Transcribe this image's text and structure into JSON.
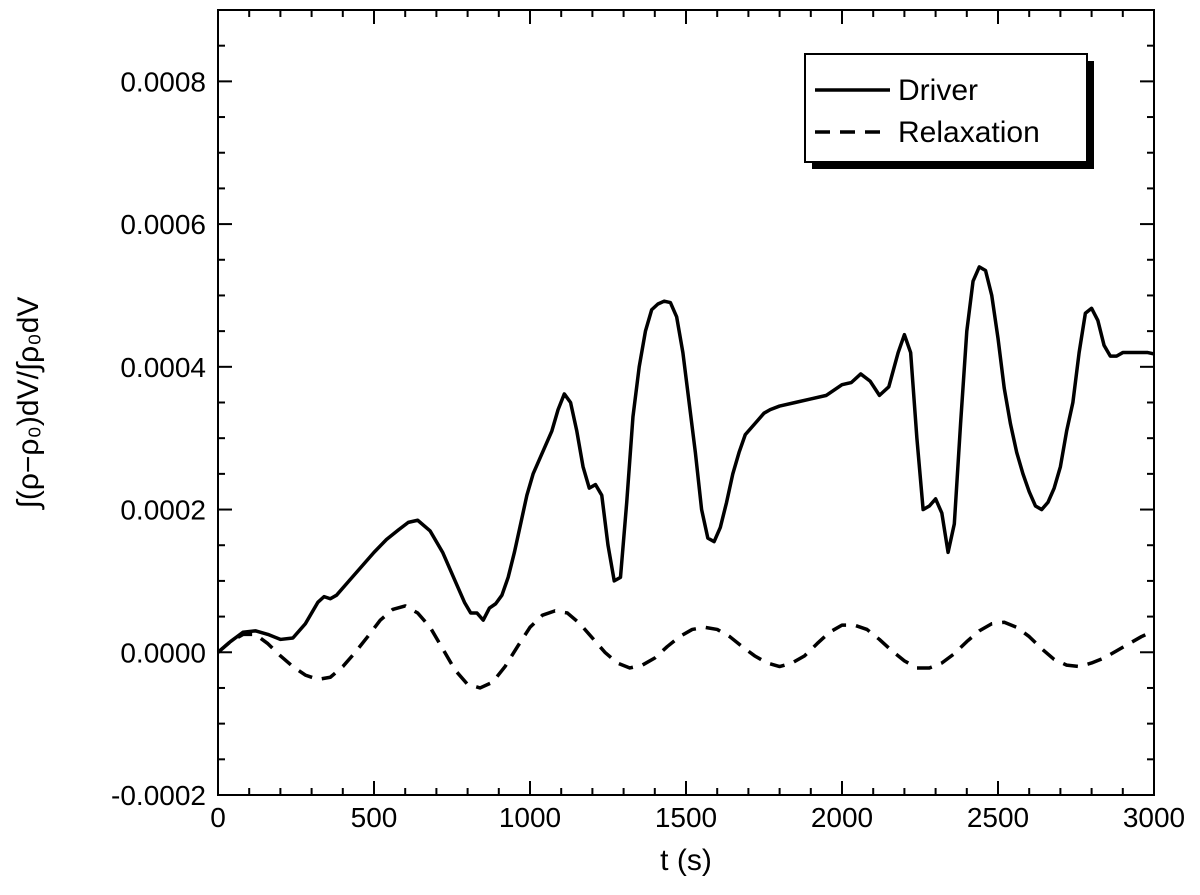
{
  "chart_data": {
    "type": "line",
    "title": "",
    "xlabel": "t (s)",
    "ylabel": "∫(ρ−ρ₀)dV/∫ρ₀dV",
    "xlim": [
      0,
      3000
    ],
    "ylim": [
      -0.0002,
      0.0009
    ],
    "x_ticks": [
      0,
      500,
      1000,
      1500,
      2000,
      2500,
      3000
    ],
    "x_tick_labels": [
      "0",
      "500",
      "1000",
      "1500",
      "2000",
      "2500",
      "3000"
    ],
    "y_ticks": [
      -0.0002,
      0,
      0.0002,
      0.0004,
      0.0006,
      0.0008
    ],
    "y_tick_labels": [
      "-0.0002",
      "0.0000",
      "0.0002",
      "0.0004",
      "0.0006",
      "0.0008"
    ],
    "grid": false,
    "legend": {
      "position": "top-right",
      "entries": [
        "Driver",
        "Relaxation"
      ]
    },
    "series": [
      {
        "name": "Driver",
        "style": "solid",
        "x": [
          0,
          40,
          80,
          120,
          160,
          200,
          240,
          280,
          320,
          340,
          360,
          380,
          420,
          460,
          500,
          540,
          580,
          610,
          640,
          680,
          720,
          760,
          790,
          810,
          830,
          850,
          870,
          890,
          910,
          930,
          950,
          970,
          990,
          1010,
          1030,
          1050,
          1070,
          1090,
          1110,
          1130,
          1150,
          1170,
          1190,
          1210,
          1230,
          1250,
          1270,
          1290,
          1310,
          1330,
          1350,
          1370,
          1390,
          1410,
          1430,
          1450,
          1470,
          1490,
          1510,
          1530,
          1550,
          1570,
          1590,
          1610,
          1630,
          1650,
          1670,
          1690,
          1710,
          1730,
          1750,
          1770,
          1800,
          1850,
          1900,
          1950,
          2000,
          2030,
          2060,
          2090,
          2120,
          2150,
          2180,
          2200,
          2220,
          2240,
          2260,
          2280,
          2300,
          2320,
          2340,
          2360,
          2380,
          2400,
          2420,
          2440,
          2460,
          2480,
          2500,
          2520,
          2540,
          2560,
          2580,
          2600,
          2620,
          2640,
          2660,
          2680,
          2700,
          2720,
          2740,
          2760,
          2780,
          2800,
          2820,
          2840,
          2860,
          2880,
          2900,
          2920,
          2940,
          2960,
          2980,
          3000
        ],
        "values": [
          0.0,
          1.5e-05,
          2.8e-05,
          3e-05,
          2.5e-05,
          1.8e-05,
          2e-05,
          4e-05,
          7e-05,
          7.8e-05,
          7.5e-05,
          8e-05,
          0.0001,
          0.00012,
          0.00014,
          0.000158,
          0.000172,
          0.000182,
          0.000185,
          0.00017,
          0.00014,
          0.0001,
          7e-05,
          5.5e-05,
          5.5e-05,
          4.5e-05,
          6.2e-05,
          6.8e-05,
          8e-05,
          0.000105,
          0.00014,
          0.00018,
          0.00022,
          0.00025,
          0.00027,
          0.00029,
          0.00031,
          0.00034,
          0.000362,
          0.00035,
          0.00031,
          0.00026,
          0.00023,
          0.000235,
          0.00022,
          0.00015,
          0.0001,
          0.000105,
          0.00021,
          0.00033,
          0.0004,
          0.00045,
          0.00048,
          0.000488,
          0.000492,
          0.00049,
          0.00047,
          0.00042,
          0.00035,
          0.00028,
          0.0002,
          0.00016,
          0.000155,
          0.000175,
          0.00021,
          0.00025,
          0.00028,
          0.000305,
          0.000315,
          0.000325,
          0.000335,
          0.00034,
          0.000345,
          0.00035,
          0.000355,
          0.00036,
          0.000375,
          0.000378,
          0.00039,
          0.00038,
          0.00036,
          0.000372,
          0.00042,
          0.000445,
          0.00042,
          0.0003,
          0.0002,
          0.000205,
          0.000215,
          0.000195,
          0.00014,
          0.00018,
          0.00032,
          0.00045,
          0.00052,
          0.00054,
          0.000535,
          0.0005,
          0.00044,
          0.00037,
          0.00032,
          0.00028,
          0.00025,
          0.000225,
          0.000205,
          0.0002,
          0.00021,
          0.00023,
          0.00026,
          0.00031,
          0.00035,
          0.00042,
          0.000475,
          0.000482,
          0.000465,
          0.00043,
          0.000415,
          0.000415,
          0.00042,
          0.00042,
          0.00042,
          0.00042,
          0.00042,
          0.000418
        ]
      },
      {
        "name": "Relaxation",
        "style": "dashed",
        "x": [
          0,
          40,
          80,
          120,
          160,
          200,
          240,
          280,
          320,
          360,
          400,
          440,
          480,
          520,
          560,
          600,
          640,
          680,
          720,
          760,
          800,
          840,
          880,
          920,
          960,
          1000,
          1040,
          1080,
          1120,
          1160,
          1200,
          1240,
          1280,
          1320,
          1360,
          1400,
          1440,
          1480,
          1520,
          1560,
          1600,
          1640,
          1680,
          1720,
          1760,
          1800,
          1840,
          1880,
          1920,
          1960,
          2000,
          2040,
          2080,
          2120,
          2160,
          2200,
          2240,
          2280,
          2320,
          2360,
          2400,
          2440,
          2480,
          2520,
          2560,
          2600,
          2640,
          2680,
          2720,
          2760,
          2800,
          2840,
          2880,
          2920,
          2960,
          3000
        ],
        "values": [
          0.0,
          1.5e-05,
          2.5e-05,
          2.5e-05,
          1.2e-05,
          -5e-06,
          -2e-05,
          -3.2e-05,
          -3.8e-05,
          -3.5e-05,
          -2e-05,
          0.0,
          2.2e-05,
          4.5e-05,
          6e-05,
          6.5e-05,
          5.5e-05,
          3.5e-05,
          5e-06,
          -2.5e-05,
          -4.5e-05,
          -5e-05,
          -4.2e-05,
          -2e-05,
          8e-06,
          3.5e-05,
          5.2e-05,
          5.8e-05,
          5.5e-05,
          4e-05,
          2e-05,
          0.0,
          -1.5e-05,
          -2.2e-05,
          -1.8e-05,
          -8e-06,
          8e-06,
          2.2e-05,
          3.2e-05,
          3.5e-05,
          3.2e-05,
          2.2e-05,
          8e-06,
          -5e-06,
          -1.5e-05,
          -2e-05,
          -1.5e-05,
          -5e-06,
          1.2e-05,
          2.8e-05,
          3.8e-05,
          3.8e-05,
          3.2e-05,
          1.8e-05,
          2e-06,
          -1.2e-05,
          -2.2e-05,
          -2.2e-05,
          -1.5e-05,
          -2e-06,
          1.5e-05,
          3e-05,
          4e-05,
          4.2e-05,
          3.5e-05,
          2.2e-05,
          5e-06,
          -1e-05,
          -1.8e-05,
          -2e-05,
          -1.5e-05,
          -8e-06,
          2e-06,
          1.2e-05,
          2.2e-05,
          3e-05
        ]
      }
    ]
  }
}
